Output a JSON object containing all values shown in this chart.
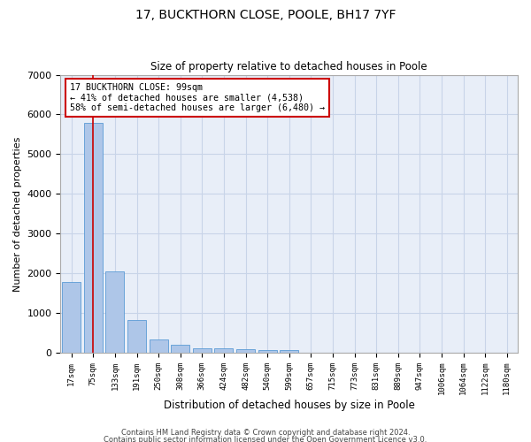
{
  "title1": "17, BUCKTHORN CLOSE, POOLE, BH17 7YF",
  "title2": "Size of property relative to detached houses in Poole",
  "xlabel": "Distribution of detached houses by size in Poole",
  "ylabel": "Number of detached properties",
  "bar_labels": [
    "17sqm",
    "75sqm",
    "133sqm",
    "191sqm",
    "250sqm",
    "308sqm",
    "366sqm",
    "424sqm",
    "482sqm",
    "540sqm",
    "599sqm",
    "657sqm",
    "715sqm",
    "773sqm",
    "831sqm",
    "889sqm",
    "947sqm",
    "1006sqm",
    "1064sqm",
    "1122sqm",
    "1180sqm"
  ],
  "bar_values": [
    1780,
    5780,
    2060,
    820,
    340,
    200,
    120,
    110,
    95,
    80,
    75,
    0,
    0,
    0,
    0,
    0,
    0,
    0,
    0,
    0,
    0
  ],
  "bar_color": "#aec6e8",
  "bar_edge_color": "#5b9bd5",
  "red_line_x": 1,
  "annotation_text": "17 BUCKTHORN CLOSE: 99sqm\n← 41% of detached houses are smaller (4,538)\n58% of semi-detached houses are larger (6,480) →",
  "annotation_box_color": "#ffffff",
  "annotation_box_edge": "#cc0000",
  "ylim": [
    0,
    7000
  ],
  "yticks": [
    0,
    1000,
    2000,
    3000,
    4000,
    5000,
    6000,
    7000
  ],
  "grid_color": "#c8d4e8",
  "bg_color": "#e8eef8",
  "footer1": "Contains HM Land Registry data © Crown copyright and database right 2024.",
  "footer2": "Contains public sector information licensed under the Open Government Licence v3.0."
}
